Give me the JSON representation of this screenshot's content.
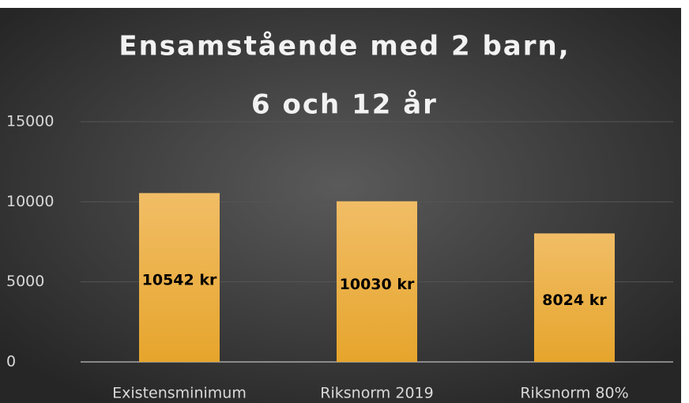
{
  "chart_data": {
    "type": "bar",
    "title": [
      "Ensamstående med 2 barn,",
      "6 och 12 år"
    ],
    "categories": [
      "Existensminimum",
      "Riksnorm 2019",
      "Riksnorm 80%"
    ],
    "values": [
      10542,
      10030,
      8024
    ],
    "value_labels": [
      "10542 kr",
      "10030 kr",
      "8024 kr"
    ],
    "color": "#edb049",
    "ylim": [
      0,
      15000
    ],
    "yticks": [
      0,
      5000,
      10000,
      15000
    ],
    "grid": true
  }
}
